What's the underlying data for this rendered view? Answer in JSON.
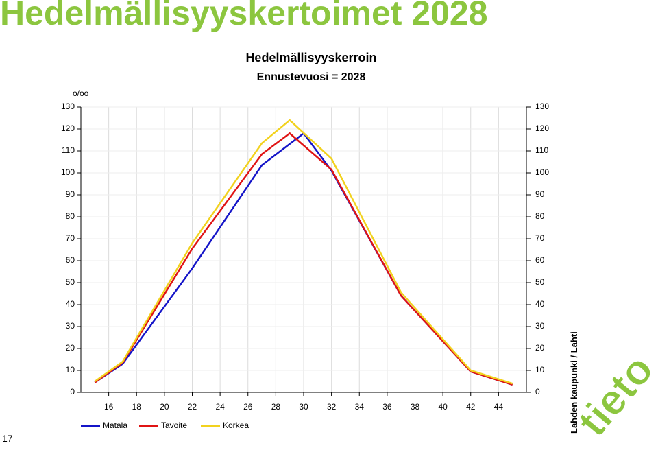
{
  "slide": {
    "title": "Hedelmällisyyskertoimet 2028",
    "page_number": "17",
    "side_text": "Lahden kaupunki / Lahti",
    "logo": "tieto"
  },
  "chart_data": {
    "type": "line",
    "title": "Hedelmällisyyskerroin",
    "subtitle": "Ennustevuosi = 2028",
    "y_label": "o/oo",
    "xlim": [
      14,
      46
    ],
    "xticks": [
      16,
      18,
      20,
      22,
      24,
      26,
      28,
      30,
      32,
      34,
      36,
      38,
      40,
      42,
      44
    ],
    "ylim": [
      0,
      130
    ],
    "yticks": [
      0,
      10,
      20,
      30,
      40,
      50,
      60,
      70,
      80,
      90,
      100,
      110,
      120,
      130
    ],
    "grid": true,
    "legend": "bottom",
    "series": [
      {
        "name": "Matala",
        "color": "#1414c8",
        "x": [
          15,
          17,
          22,
          27,
          30,
          32,
          37,
          42,
          45
        ],
        "values": [
          4.5,
          13,
          56.5,
          103.5,
          118,
          101,
          44,
          9.5,
          3.5
        ]
      },
      {
        "name": "Tavoite",
        "color": "#e01414",
        "x": [
          15,
          17,
          22,
          27,
          29,
          32,
          37,
          42,
          45
        ],
        "values": [
          4.5,
          13.5,
          65.5,
          108.5,
          118,
          101.5,
          44,
          9.5,
          3.5
        ]
      },
      {
        "name": "Korkea",
        "color": "#f2d21e",
        "x": [
          15,
          17,
          22,
          27,
          29,
          32,
          37,
          42,
          45
        ],
        "values": [
          5,
          14,
          68,
          113.5,
          124,
          106.5,
          45.5,
          10,
          4
        ]
      }
    ]
  }
}
